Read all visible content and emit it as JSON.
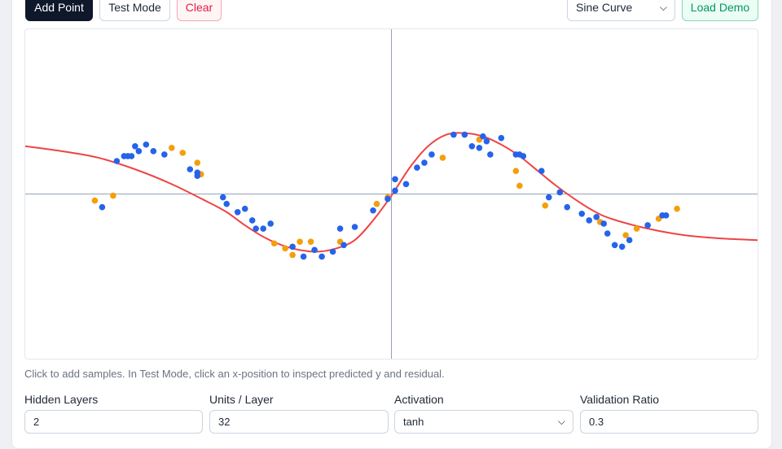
{
  "toolbar": {
    "add_point_label": "Add Point",
    "test_mode_label": "Test Mode",
    "clear_label": "Clear",
    "dataset_selected": "Sine Curve",
    "load_demo_label": "Load Demo"
  },
  "hint": "Click to add samples. In Test Mode, click an x-position to inspect predicted y and residual.",
  "settings": {
    "hidden_layers": {
      "label": "Hidden Layers",
      "value": "2"
    },
    "units_per_layer": {
      "label": "Units / Layer",
      "value": "32"
    },
    "activation": {
      "label": "Activation",
      "value": "tanh"
    },
    "validation_ratio": {
      "label": "Validation Ratio",
      "value": "0.3"
    }
  },
  "colors": {
    "train": "#2563eb",
    "validation": "#f59e0b",
    "prediction": "#ef4444",
    "axis": "#94a3b8"
  },
  "chart_data": {
    "type": "scatter",
    "xlim": [
      -1,
      1
    ],
    "ylim": [
      -1,
      1
    ],
    "grid": false,
    "train": [
      [
        -0.79,
        -0.08
      ],
      [
        -0.75,
        0.2
      ],
      [
        -0.73,
        0.23
      ],
      [
        -0.72,
        0.23
      ],
      [
        -0.71,
        0.23
      ],
      [
        -0.7,
        0.29
      ],
      [
        -0.69,
        0.26
      ],
      [
        -0.67,
        0.3
      ],
      [
        -0.65,
        0.26
      ],
      [
        -0.62,
        0.24
      ],
      [
        -0.55,
        0.15
      ],
      [
        -0.53,
        0.13
      ],
      [
        -0.53,
        0.11
      ],
      [
        -0.46,
        -0.02
      ],
      [
        -0.45,
        -0.06
      ],
      [
        -0.42,
        -0.11
      ],
      [
        -0.4,
        -0.09
      ],
      [
        -0.38,
        -0.16
      ],
      [
        -0.37,
        -0.21
      ],
      [
        -0.35,
        -0.21
      ],
      [
        -0.33,
        -0.18
      ],
      [
        -0.27,
        -0.32
      ],
      [
        -0.24,
        -0.38
      ],
      [
        -0.21,
        -0.34
      ],
      [
        -0.19,
        -0.38
      ],
      [
        -0.16,
        -0.35
      ],
      [
        -0.14,
        -0.21
      ],
      [
        -0.13,
        -0.31
      ],
      [
        -0.1,
        -0.2
      ],
      [
        -0.05,
        -0.1
      ],
      [
        -0.01,
        -0.03
      ],
      [
        0.01,
        0.02
      ],
      [
        0.01,
        0.09
      ],
      [
        0.04,
        0.06
      ],
      [
        0.07,
        0.16
      ],
      [
        0.09,
        0.19
      ],
      [
        0.11,
        0.24
      ],
      [
        0.17,
        0.36
      ],
      [
        0.2,
        0.36
      ],
      [
        0.22,
        0.29
      ],
      [
        0.24,
        0.28
      ],
      [
        0.25,
        0.35
      ],
      [
        0.26,
        0.32
      ],
      [
        0.27,
        0.24
      ],
      [
        0.3,
        0.34
      ],
      [
        0.34,
        0.24
      ],
      [
        0.35,
        0.24
      ],
      [
        0.36,
        0.23
      ],
      [
        0.41,
        0.14
      ],
      [
        0.43,
        -0.02
      ],
      [
        0.46,
        0.01
      ],
      [
        0.48,
        -0.08
      ],
      [
        0.52,
        -0.12
      ],
      [
        0.54,
        -0.16
      ],
      [
        0.56,
        -0.14
      ],
      [
        0.58,
        -0.18
      ],
      [
        0.59,
        -0.24
      ],
      [
        0.61,
        -0.31
      ],
      [
        0.63,
        -0.32
      ],
      [
        0.65,
        -0.28
      ],
      [
        0.7,
        -0.19
      ],
      [
        0.74,
        -0.13
      ],
      [
        0.75,
        -0.13
      ]
    ],
    "validation": [
      [
        -0.81,
        -0.04
      ],
      [
        -0.76,
        -0.01
      ],
      [
        -0.6,
        0.28
      ],
      [
        -0.57,
        0.25
      ],
      [
        -0.53,
        0.19
      ],
      [
        -0.52,
        0.12
      ],
      [
        -0.32,
        -0.3
      ],
      [
        -0.29,
        -0.33
      ],
      [
        -0.27,
        -0.37
      ],
      [
        -0.25,
        -0.29
      ],
      [
        -0.22,
        -0.29
      ],
      [
        -0.14,
        -0.29
      ],
      [
        -0.04,
        -0.06
      ],
      [
        -0.01,
        -0.02
      ],
      [
        0.14,
        0.22
      ],
      [
        0.24,
        0.33
      ],
      [
        0.34,
        0.14
      ],
      [
        0.35,
        0.05
      ],
      [
        0.42,
        -0.07
      ],
      [
        0.57,
        -0.17
      ],
      [
        0.64,
        -0.25
      ],
      [
        0.67,
        -0.21
      ],
      [
        0.73,
        -0.15
      ],
      [
        0.78,
        -0.09
      ]
    ],
    "prediction": [
      [
        -1.0,
        0.29
      ],
      [
        -0.9,
        0.26
      ],
      [
        -0.8,
        0.22
      ],
      [
        -0.7,
        0.15
      ],
      [
        -0.6,
        0.06
      ],
      [
        -0.5,
        -0.05
      ],
      [
        -0.45,
        -0.11
      ],
      [
        -0.4,
        -0.19
      ],
      [
        -0.35,
        -0.26
      ],
      [
        -0.3,
        -0.31
      ],
      [
        -0.25,
        -0.34
      ],
      [
        -0.2,
        -0.35
      ],
      [
        -0.15,
        -0.33
      ],
      [
        -0.1,
        -0.28
      ],
      [
        -0.05,
        -0.16
      ],
      [
        0.0,
        -0.01
      ],
      [
        0.05,
        0.16
      ],
      [
        0.1,
        0.29
      ],
      [
        0.15,
        0.36
      ],
      [
        0.2,
        0.37
      ],
      [
        0.25,
        0.35
      ],
      [
        0.3,
        0.3
      ],
      [
        0.35,
        0.23
      ],
      [
        0.4,
        0.14
      ],
      [
        0.45,
        0.05
      ],
      [
        0.5,
        -0.03
      ],
      [
        0.55,
        -0.1
      ],
      [
        0.6,
        -0.15
      ],
      [
        0.7,
        -0.21
      ],
      [
        0.8,
        -0.25
      ],
      [
        0.9,
        -0.27
      ],
      [
        1.0,
        -0.28
      ]
    ]
  }
}
